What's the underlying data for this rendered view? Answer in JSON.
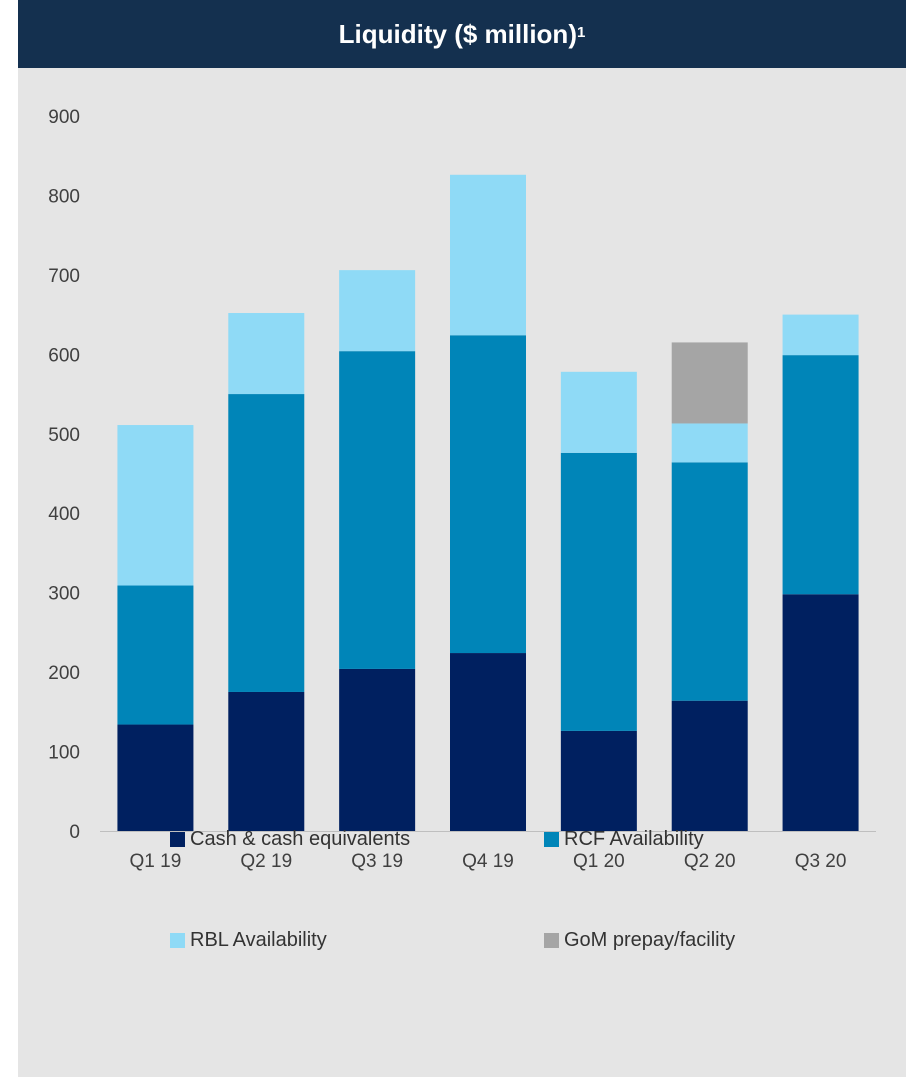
{
  "title": {
    "main": "Liquidity ($ million)",
    "superscript": "1"
  },
  "chart_data": {
    "type": "bar",
    "stacked": true,
    "categories": [
      "Q1 19",
      "Q2 19",
      "Q3 19",
      "Q4 19",
      "Q1 20",
      "Q2 20",
      "Q3 20"
    ],
    "series": [
      {
        "name": "Cash & cash equivalents",
        "color": "#002060",
        "values": [
          134,
          175,
          204,
          224,
          126,
          164,
          298
        ]
      },
      {
        "name": "RCF Availability",
        "color": "#0085b8",
        "values": [
          175,
          375,
          400,
          400,
          350,
          300,
          301
        ]
      },
      {
        "name": "RBL Availability",
        "color": "#8fdaf6",
        "values": [
          202,
          102,
          102,
          202,
          102,
          49,
          51
        ]
      },
      {
        "name": "GoM prepay/facility",
        "color": "#a5a5a5",
        "values": [
          0,
          0,
          0,
          0,
          0,
          102,
          0
        ]
      }
    ],
    "ylim": [
      0,
      900
    ],
    "yticks": [
      "0",
      "100",
      "200",
      "300",
      "400",
      "500",
      "600",
      "700",
      "800",
      "900"
    ],
    "xlabel": "",
    "ylabel": "",
    "grid": false,
    "legend_position": "bottom"
  }
}
